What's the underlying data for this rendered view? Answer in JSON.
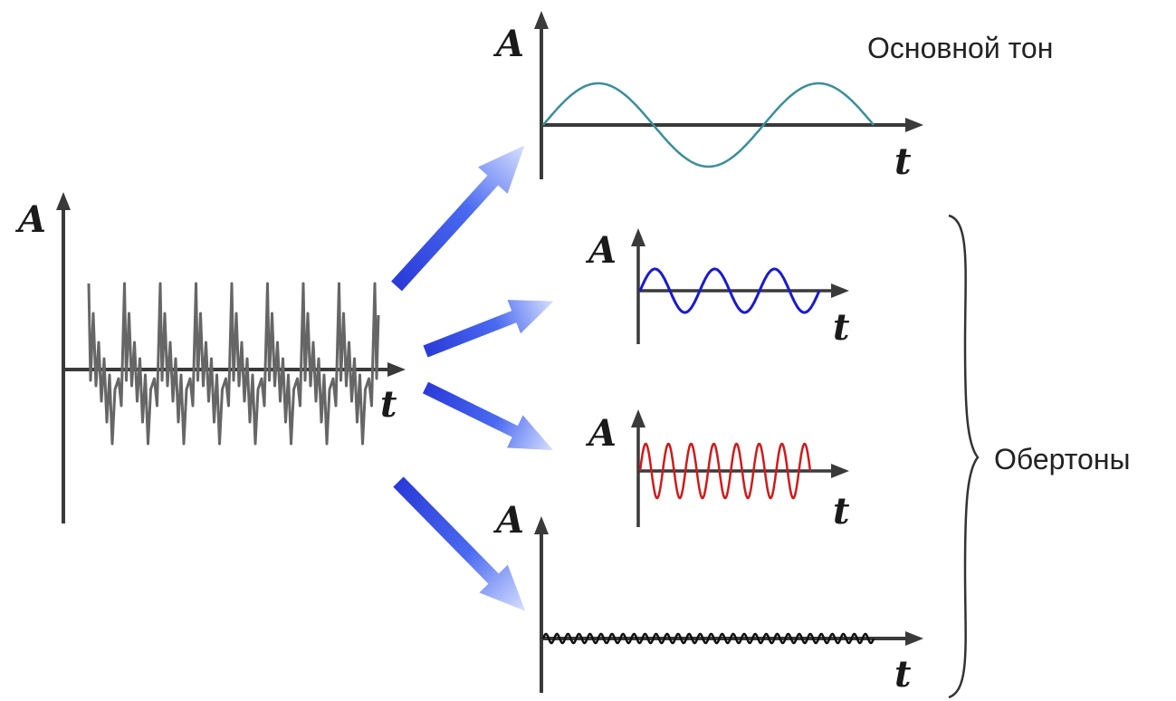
{
  "axes": {
    "amplitude_label": "A",
    "time_label": "t"
  },
  "labels": {
    "fundamental": "Основной тон",
    "overtones": "Обертоны"
  },
  "colors": {
    "axis": "#3a3a3a",
    "complex_wave": "#666666",
    "fundamental": "#3a8f9a",
    "overtone_1": "#1a1ad0",
    "overtone_2": "#d01a1a",
    "overtone_3": "#111111",
    "arrow": "#2a3ad8",
    "arrow_light": "#d8e0ff"
  },
  "icons": {
    "decomposition_arrows": "gradient-arrow-icon"
  }
}
